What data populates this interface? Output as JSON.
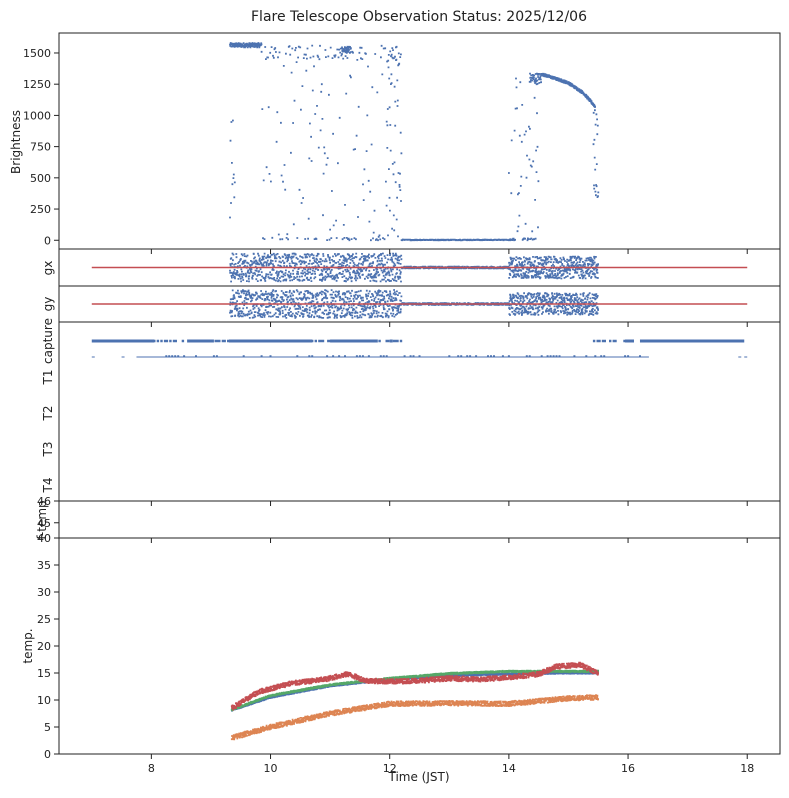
{
  "title": "Flare Telescope Observation Status: 2025/12/06",
  "colors": {
    "blue": "#4c72b0",
    "orange": "#dd8452",
    "green": "#55a868",
    "red": "#c44e52",
    "axis": "#222222"
  },
  "chart_data": [
    {
      "id": "brightness",
      "type": "scatter",
      "ylabel": "Brightness",
      "xlim": [
        6.45,
        18.55
      ],
      "ylim": [
        -70,
        1660
      ],
      "yticks": [
        0,
        250,
        500,
        750,
        1000,
        1250,
        1500
      ],
      "series": [
        {
          "color": "#4c72b0",
          "segments": [
            {
              "x": [
                9.35,
                9.5,
                9.7,
                9.85
              ],
              "y": [
                1540,
                1570,
                1570,
                1550
              ],
              "mode": "sparse"
            },
            {
              "x": [
                14.55,
                14.75,
                15.0,
                15.25,
                15.45
              ],
              "y": [
                1330,
                1300,
                1260,
                1180,
                1070
              ],
              "mode": "trend"
            },
            {
              "x": [
                12.2,
                14.0
              ],
              "y": [
                0,
                0
              ],
              "mode": "flat"
            }
          ]
        }
      ]
    },
    {
      "id": "gx",
      "type": "scatter",
      "ylabel": "gx",
      "reference_line": {
        "x": [
          7.0,
          18.0
        ],
        "color": "#c44e52"
      }
    },
    {
      "id": "gy",
      "type": "scatter",
      "ylabel": "gy",
      "reference_line": {
        "x": [
          7.0,
          18.0
        ],
        "color": "#c44e52"
      }
    },
    {
      "id": "status",
      "type": "scatter",
      "rows": [
        "capture",
        "T1",
        "T2",
        "T3",
        "T4"
      ],
      "capture_on": [
        [
          7.0,
          8.05
        ],
        [
          8.6,
          9.05
        ],
        [
          9.3,
          10.7
        ],
        [
          11.0,
          11.8
        ],
        [
          12.0,
          12.05
        ],
        [
          15.95,
          16.1
        ],
        [
          16.2,
          17.95
        ]
      ],
      "capture_scattered": [
        [
          8.05,
          8.6
        ],
        [
          9.05,
          9.3
        ],
        [
          10.7,
          11.0
        ],
        [
          11.8,
          12.2
        ],
        [
          15.4,
          15.95
        ]
      ],
      "t1_line": [
        [
          7.0,
          7.05
        ],
        [
          7.5,
          7.55
        ],
        [
          7.75,
          16.35
        ],
        [
          17.85,
          17.9
        ],
        [
          17.95,
          18.0
        ]
      ]
    },
    {
      "id": "f-temp",
      "type": "line",
      "ylabel": "f-temp",
      "ylim": [
        44.3,
        46
      ],
      "yticks": [
        45,
        46
      ]
    },
    {
      "id": "temp",
      "type": "scatter",
      "ylabel": "temp.",
      "xlabel": "Time (JST)",
      "xlim": [
        6.45,
        18.55
      ],
      "ylim": [
        0,
        40
      ],
      "xticks": [
        8,
        10,
        12,
        14,
        16,
        18
      ],
      "yticks": [
        0,
        5,
        10,
        15,
        20,
        25,
        30,
        35,
        40
      ],
      "series": [
        {
          "color": "#dd8452",
          "x": [
            9.35,
            10.0,
            11.0,
            12.0,
            13.0,
            14.0,
            15.0,
            15.5
          ],
          "y": [
            3.0,
            5.0,
            7.5,
            9.3,
            9.4,
            9.3,
            10.3,
            10.5
          ]
        },
        {
          "color": "#4c72b0",
          "x": [
            9.35,
            10.0,
            11.0,
            12.0,
            13.0,
            14.0,
            15.0,
            15.5
          ],
          "y": [
            8.1,
            10.5,
            12.6,
            13.8,
            14.5,
            14.8,
            15.0,
            15.0
          ]
        },
        {
          "color": "#55a868",
          "x": [
            9.35,
            10.0,
            11.0,
            12.0,
            13.0,
            14.0,
            15.0,
            15.5
          ],
          "y": [
            8.2,
            10.8,
            12.8,
            14.0,
            14.9,
            15.3,
            15.3,
            15.3
          ]
        },
        {
          "color": "#c44e52",
          "x": [
            9.35,
            9.8,
            10.3,
            10.9,
            11.3,
            11.6,
            12.0,
            12.5,
            13.0,
            13.5,
            14.0,
            14.5,
            14.8,
            15.2,
            15.5
          ],
          "y": [
            8.5,
            11.5,
            13.0,
            13.8,
            14.8,
            13.6,
            13.4,
            13.6,
            14.0,
            13.8,
            14.2,
            14.8,
            16.2,
            16.5,
            15.0
          ]
        }
      ]
    }
  ]
}
